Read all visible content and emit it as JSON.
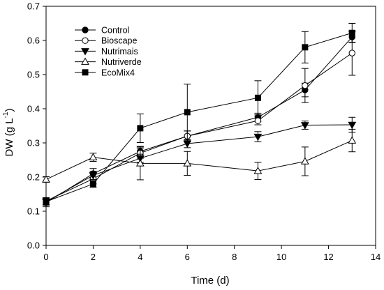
{
  "chart_data": {
    "type": "line",
    "xlabel": "Time (d)",
    "ylabel": {
      "main": "DW (g L",
      "sup": "-1",
      "close": ")"
    },
    "xlim": [
      0,
      14
    ],
    "ylim": [
      0.0,
      0.7
    ],
    "xticks": [
      0,
      2,
      4,
      6,
      8,
      10,
      12,
      14
    ],
    "xtick_labels": [
      "0",
      "2",
      "4",
      "6",
      "8",
      "10",
      "12",
      "14"
    ],
    "yticks": [
      0.0,
      0.1,
      0.2,
      0.3,
      0.4,
      0.5,
      0.6,
      0.7
    ],
    "ytick_labels": [
      "0.0",
      "0.1",
      "0.2",
      "0.3",
      "0.4",
      "0.5",
      "0.6",
      "0.7"
    ],
    "grid": false,
    "legend_position": "top-left",
    "series": [
      {
        "name": "Control",
        "marker": "filled-circle",
        "x": [
          0,
          2,
          4,
          6,
          9,
          11,
          13
        ],
        "y": [
          0.125,
          0.21,
          0.275,
          0.32,
          0.375,
          0.455,
          0.61
        ],
        "err": [
          0.012,
          0.015,
          0.015,
          0.015,
          0.012,
          0.02,
          0.015
        ]
      },
      {
        "name": "Bioscape",
        "marker": "open-circle",
        "x": [
          0,
          2,
          4,
          6,
          9,
          11,
          13
        ],
        "y": [
          0.13,
          0.195,
          0.27,
          0.32,
          0.365,
          0.468,
          0.563
        ],
        "err": [
          0.01,
          0.015,
          0.015,
          0.015,
          0.012,
          0.05,
          0.065
        ]
      },
      {
        "name": "Nutrimais",
        "marker": "filled-triangle-down",
        "x": [
          0,
          2,
          4,
          6,
          9,
          11,
          13
        ],
        "y": [
          0.128,
          0.205,
          0.255,
          0.298,
          0.318,
          0.352,
          0.353
        ],
        "err": [
          0.01,
          0.012,
          0.012,
          0.012,
          0.015,
          0.012,
          0.022
        ]
      },
      {
        "name": "Nutriverde",
        "marker": "open-triangle-up",
        "x": [
          0,
          2,
          4,
          6,
          9,
          11,
          13
        ],
        "y": [
          0.193,
          0.258,
          0.24,
          0.24,
          0.218,
          0.246,
          0.307
        ],
        "err": [
          0.008,
          0.012,
          0.048,
          0.035,
          0.025,
          0.042,
          0.033
        ]
      },
      {
        "name": "EcoMix4",
        "marker": "filled-square",
        "x": [
          0,
          2,
          4,
          6,
          9,
          11,
          13
        ],
        "y": [
          0.128,
          0.18,
          0.343,
          0.39,
          0.432,
          0.58,
          0.622
        ],
        "err": [
          0.01,
          0.01,
          0.042,
          0.082,
          0.05,
          0.046,
          0.028
        ]
      }
    ]
  }
}
